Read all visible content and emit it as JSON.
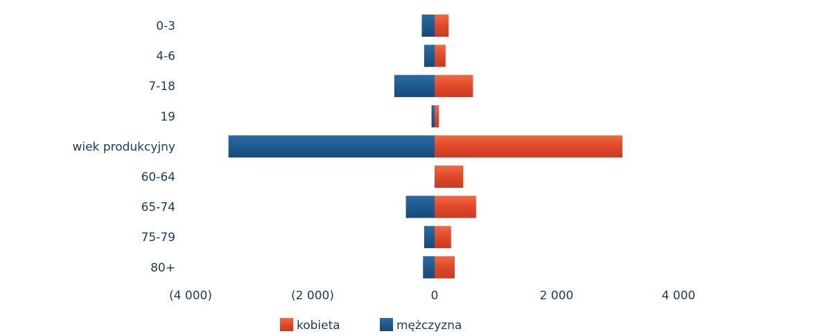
{
  "chart_data": {
    "type": "bar",
    "orientation": "horizontal",
    "layout": "population-pyramid",
    "categories": [
      "0-3",
      "4-6",
      "7-18",
      "19",
      "wiek produkcyjny",
      "60-64",
      "65-74",
      "75-79",
      "80+"
    ],
    "series": [
      {
        "name": "kobieta",
        "color": "#e0482a",
        "values": [
          230,
          180,
          630,
          70,
          3080,
          470,
          680,
          270,
          330
        ]
      },
      {
        "name": "mężczyzna",
        "color": "#1e5a8f",
        "values": [
          -210,
          -170,
          -660,
          -50,
          -3380,
          0,
          -470,
          -170,
          -190
        ]
      }
    ],
    "x_ticks": [
      {
        "value": -4000,
        "label": "(4 000)"
      },
      {
        "value": -2000,
        "label": "(2 000)"
      },
      {
        "value": 0,
        "label": "0"
      },
      {
        "value": 2000,
        "label": "2 000"
      },
      {
        "value": 4000,
        "label": "4 000"
      }
    ],
    "xlim": [
      -4000,
      4000
    ],
    "grid": false,
    "legend_position": "bottom-center"
  }
}
